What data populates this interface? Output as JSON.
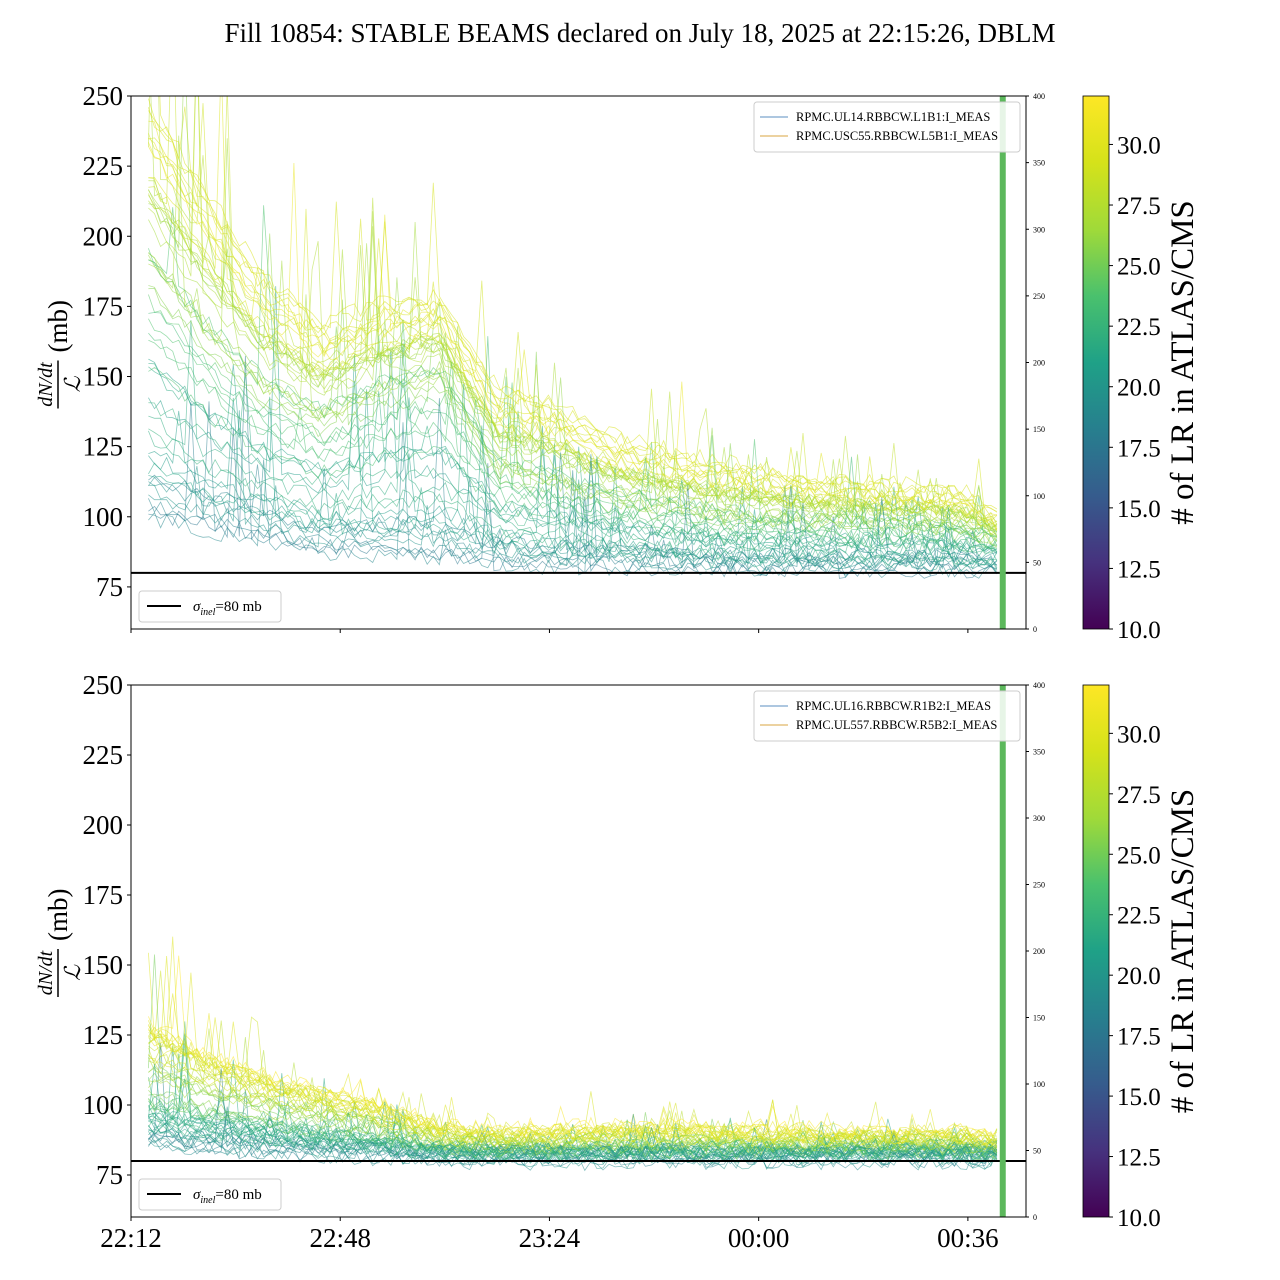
{
  "title": "Fill 10854: STABLE BEAMS declared on July 18, 2025 at 22:15:26, DBLM",
  "colors": {
    "beam1_line": "#5b8fc0",
    "beam2_line": "#d9a441",
    "reference_line": "#000000",
    "marker_band": "#5cb85c"
  },
  "chart_data": [
    {
      "type": "line",
      "panel": "top",
      "ylabel_fraction_numerator": "dN/dt",
      "ylabel_fraction_denominator": "ℒ",
      "ylabel_unit": "(mb)",
      "y_ticks": [
        "75",
        "100",
        "125",
        "150",
        "175",
        "200",
        "225",
        "250"
      ],
      "ylim": [
        60,
        250
      ],
      "right_axis_ticks": [
        "0",
        "50",
        "100",
        "150",
        "200",
        "250",
        "300",
        "350",
        "400"
      ],
      "right_ylim": [
        0,
        400
      ],
      "x_ticks": [
        "22:12",
        "22:48",
        "23:24",
        "00:00",
        "00:36"
      ],
      "x_time_range": [
        "22:12",
        "00:46"
      ],
      "legend": [
        {
          "label": "RPMC.UL14.RBBCW.L1B1:I_MEAS",
          "color": "#5b8fc0"
        },
        {
          "label": "RPMC.USC55.RBBCW.L5B1:I_MEAS",
          "color": "#d9a441"
        }
      ],
      "reference": {
        "label_symbol": "σ",
        "label_subscript": "inel",
        "label_value": "=80 mb",
        "y": 80
      },
      "vertical_marker": "00:42",
      "bundle_profile": {
        "times": [
          "22:15",
          "22:25",
          "22:35",
          "22:45",
          "22:55",
          "23:05",
          "23:15",
          "23:25",
          "23:35",
          "23:45",
          "23:55",
          "00:05",
          "00:15",
          "00:25",
          "00:35",
          "00:41"
        ],
        "upper": [
          250,
          215,
          185,
          168,
          175,
          178,
          145,
          140,
          128,
          122,
          118,
          114,
          112,
          110,
          108,
          100
        ],
        "median": [
          190,
          165,
          145,
          135,
          145,
          150,
          118,
          112,
          106,
          103,
          100,
          99,
          98,
          97,
          96,
          92
        ],
        "lower": [
          100,
          96,
          92,
          88,
          87,
          86,
          84,
          83,
          83,
          83,
          82,
          82,
          82,
          82,
          82,
          82
        ]
      }
    },
    {
      "type": "line",
      "panel": "bottom",
      "ylabel_fraction_numerator": "dN/dt",
      "ylabel_fraction_denominator": "ℒ",
      "ylabel_unit": "(mb)",
      "y_ticks": [
        "75",
        "100",
        "125",
        "150",
        "175",
        "200",
        "225",
        "250"
      ],
      "ylim": [
        60,
        250
      ],
      "right_axis_ticks": [
        "0",
        "50",
        "100",
        "150",
        "200",
        "250",
        "300",
        "350",
        "400"
      ],
      "right_ylim": [
        0,
        400
      ],
      "x_ticks": [
        "22:12",
        "22:48",
        "23:24",
        "00:00",
        "00:36"
      ],
      "x_time_range": [
        "22:12",
        "00:46"
      ],
      "legend": [
        {
          "label": "RPMC.UL16.RBBCW.R1B2:I_MEAS",
          "color": "#5b8fc0"
        },
        {
          "label": "RPMC.UL557.RBBCW.R5B2:I_MEAS",
          "color": "#d9a441"
        }
      ],
      "reference": {
        "label_symbol": "σ",
        "label_subscript": "inel",
        "label_value": "=80 mb",
        "y": 80
      },
      "vertical_marker": "00:42",
      "bundle_profile": {
        "times": [
          "22:15",
          "22:25",
          "22:35",
          "22:45",
          "22:55",
          "23:05",
          "23:15",
          "23:25",
          "23:35",
          "23:45",
          "23:55",
          "00:05",
          "00:15",
          "00:25",
          "00:35",
          "00:41"
        ],
        "upper": [
          130,
          118,
          110,
          105,
          100,
          92,
          90,
          91,
          92,
          92,
          91,
          91,
          90,
          90,
          90,
          88
        ],
        "median": [
          105,
          100,
          97,
          93,
          90,
          86,
          85,
          85,
          85,
          85,
          85,
          85,
          85,
          85,
          85,
          84
        ],
        "lower": [
          86,
          84,
          83,
          82,
          82,
          81,
          81,
          81,
          81,
          81,
          81,
          81,
          81,
          81,
          81,
          81
        ]
      }
    }
  ],
  "colorbar": {
    "label": "# of LR in ATLAS/CMS",
    "range": [
      10,
      32
    ],
    "ticks": [
      "10.0",
      "12.5",
      "15.0",
      "17.5",
      "20.0",
      "22.5",
      "25.0",
      "27.5",
      "30.0"
    ],
    "colormap": "viridis"
  }
}
